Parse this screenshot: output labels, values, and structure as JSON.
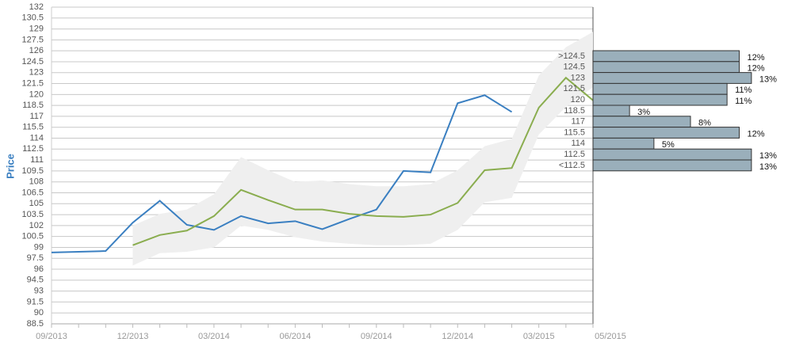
{
  "chart_data": [
    {
      "type": "line",
      "y_label": "Price",
      "categories": [
        "09/2013",
        null,
        null,
        "12/2013",
        null,
        null,
        "03/2014",
        null,
        null,
        "06/2014",
        null,
        null,
        "09/2014",
        null,
        null,
        "12/2014",
        null,
        null,
        "03/2015",
        null,
        "05/2015"
      ],
      "series": [
        {
          "color": "#3a7fc1",
          "values": [
            98.3,
            98.4,
            98.5,
            102.4,
            105.4,
            102.1,
            101.4,
            103.3,
            102.3,
            102.6,
            101.5,
            102.9,
            104.2,
            109.5,
            109.3,
            118.8,
            119.9,
            117.6,
            null,
            null,
            null
          ]
        },
        {
          "color": "#8aad4f",
          "values": [
            null,
            null,
            null,
            99.3,
            100.7,
            101.3,
            103.3,
            106.9,
            105.5,
            104.2,
            104.2,
            103.6,
            103.3,
            103.2,
            103.5,
            105.1,
            109.6,
            109.9,
            118.2,
            122.3,
            119.2
          ]
        }
      ],
      "band": {
        "color": "#efefef",
        "upper": [
          null,
          null,
          null,
          102.0,
          103.6,
          104.2,
          106.3,
          111.4,
          109.6,
          108.0,
          108.2,
          107.7,
          107.4,
          107.4,
          107.7,
          109.6,
          112.9,
          113.9,
          122.6,
          126.5,
          128.6
        ],
        "lower": [
          null,
          null,
          null,
          96.5,
          98.2,
          98.4,
          99.0,
          102.0,
          101.4,
          100.4,
          99.8,
          99.5,
          99.3,
          99.3,
          99.5,
          101.4,
          105.2,
          105.8,
          114.5,
          118.3,
          121.0
        ]
      },
      "ylim": [
        88.5,
        132
      ],
      "yticks": [
        88.5,
        90,
        91.5,
        93,
        94.5,
        96,
        97.5,
        99,
        100.5,
        102,
        103.5,
        105,
        106.5,
        108,
        109.5,
        111,
        112.5,
        114,
        115.5,
        117,
        118.5,
        120,
        121.5,
        123,
        124.5,
        126,
        127.5,
        129,
        130.5,
        132
      ],
      "grid": true
    },
    {
      "type": "bar",
      "orientation": "horizontal",
      "categories": [
        ">124.5",
        "124.5",
        "123",
        "121.5",
        "120",
        "118.5",
        "117",
        "115.5",
        "114",
        "112.5",
        "<112.5"
      ],
      "values": [
        12,
        12,
        13,
        11,
        11,
        3,
        8,
        12,
        5,
        13,
        13
      ],
      "value_labels": [
        "12%",
        "12%",
        "13%",
        "11%",
        "11%",
        "3%",
        "8%",
        "12%",
        "5%",
        "13%",
        "13%"
      ],
      "color": "#9aafbb",
      "xlim": [
        0,
        16
      ]
    }
  ]
}
